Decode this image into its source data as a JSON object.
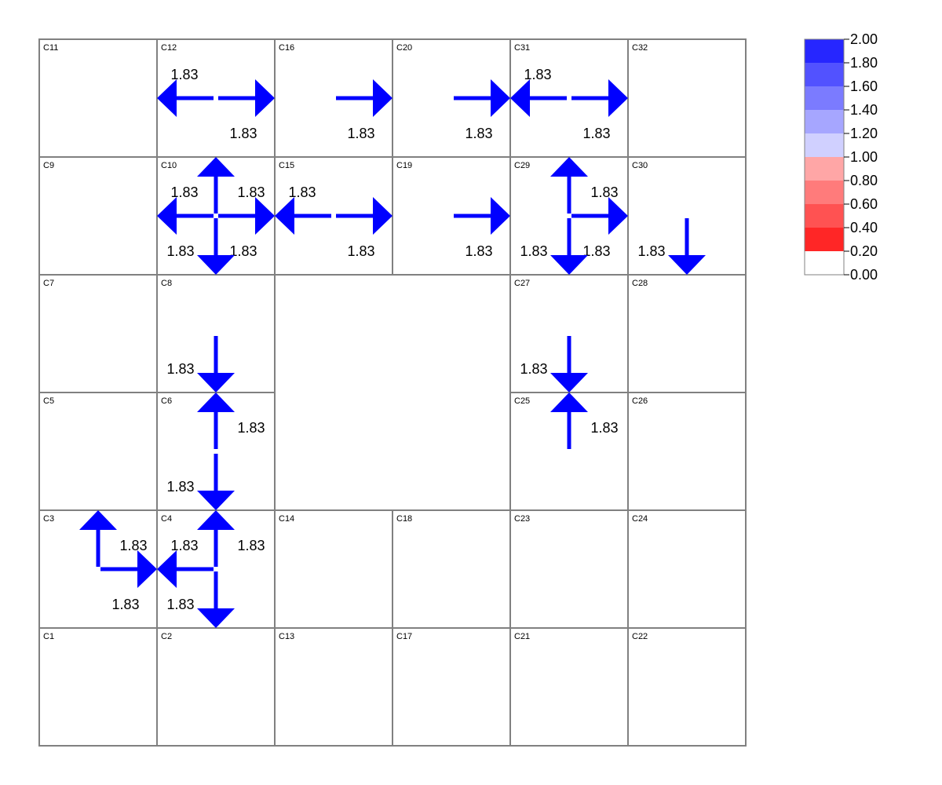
{
  "grid": {
    "rows": [
      [
        "C11",
        "C12",
        "C16",
        "C20",
        "C31",
        "C32"
      ],
      [
        "C9",
        "C10",
        "C15",
        "C19",
        "C29",
        "C30"
      ],
      [
        "C7",
        "C8",
        null,
        null,
        "C27",
        "C28"
      ],
      [
        "C5",
        "C6",
        null,
        null,
        "C25",
        "C26"
      ],
      [
        "C3",
        "C4",
        "C14",
        "C18",
        "C23",
        "C24"
      ],
      [
        "C1",
        "C2",
        "C13",
        "C17",
        "C21",
        "C22"
      ]
    ]
  },
  "flows": [
    {
      "cell": "C12",
      "dir": "left",
      "value": "1.83"
    },
    {
      "cell": "C12",
      "dir": "right",
      "value": "1.83"
    },
    {
      "cell": "C16",
      "dir": "right",
      "value": "1.83"
    },
    {
      "cell": "C20",
      "dir": "right",
      "value": "1.83"
    },
    {
      "cell": "C31",
      "dir": "left",
      "value": "1.83"
    },
    {
      "cell": "C31",
      "dir": "right",
      "value": "1.83"
    },
    {
      "cell": "C10",
      "dir": "up",
      "value": "1.83"
    },
    {
      "cell": "C10",
      "dir": "left",
      "value": "1.83"
    },
    {
      "cell": "C10",
      "dir": "right",
      "value": "1.83"
    },
    {
      "cell": "C10",
      "dir": "down",
      "value": "1.83"
    },
    {
      "cell": "C15",
      "dir": "left",
      "value": "1.83"
    },
    {
      "cell": "C15",
      "dir": "right",
      "value": "1.83"
    },
    {
      "cell": "C19",
      "dir": "right",
      "value": "1.83"
    },
    {
      "cell": "C29",
      "dir": "up",
      "value": "1.83"
    },
    {
      "cell": "C29",
      "dir": "right",
      "value": "1.83"
    },
    {
      "cell": "C29",
      "dir": "down",
      "value": "1.83"
    },
    {
      "cell": "C30",
      "dir": "down",
      "value": "1.83"
    },
    {
      "cell": "C8",
      "dir": "down",
      "value": "1.83"
    },
    {
      "cell": "C27",
      "dir": "down",
      "value": "1.83"
    },
    {
      "cell": "C6",
      "dir": "up",
      "value": "1.83"
    },
    {
      "cell": "C6",
      "dir": "down",
      "value": "1.83"
    },
    {
      "cell": "C25",
      "dir": "up",
      "value": "1.83"
    },
    {
      "cell": "C3",
      "dir": "up",
      "value": "1.83"
    },
    {
      "cell": "C3",
      "dir": "right",
      "value": "1.83"
    },
    {
      "cell": "C4",
      "dir": "up",
      "value": "1.83"
    },
    {
      "cell": "C4",
      "dir": "left",
      "value": "1.83"
    },
    {
      "cell": "C4",
      "dir": "down",
      "value": "1.83"
    }
  ],
  "flow_color": "#0000ff",
  "legend": {
    "ticks": [
      "2.00",
      "1.80",
      "1.60",
      "1.40",
      "1.20",
      "1.00",
      "0.80",
      "0.60",
      "0.40",
      "0.20",
      "0.00"
    ],
    "colors": [
      "#2626ff",
      "#5252ff",
      "#7b7bff",
      "#a6a6ff",
      "#d0d0ff",
      "#ffa6a6",
      "#ff7b7b",
      "#ff5252",
      "#ff2626",
      "#ffffff"
    ]
  }
}
